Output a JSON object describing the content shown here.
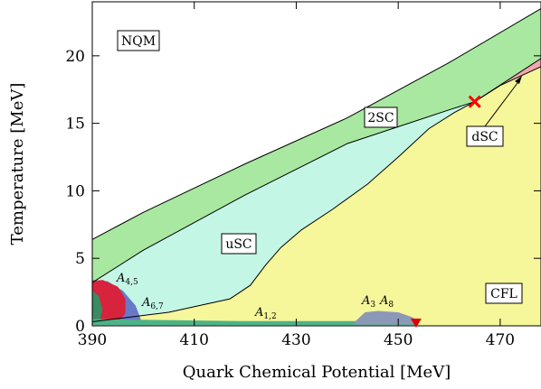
{
  "chart_data": {
    "type": "area",
    "title": "",
    "xlabel": "Quark Chemical Potential [MeV]",
    "ylabel": "Temperature [MeV]",
    "xlim": [
      390,
      478
    ],
    "ylim": [
      0,
      24
    ],
    "xticks": [
      390,
      410,
      430,
      450,
      470
    ],
    "yticks": [
      0,
      5,
      10,
      15,
      20
    ],
    "grid": false,
    "colors": {
      "nqm": "#ffffff",
      "twoSC": "#a8e8a0",
      "uSC": "#c4f6e6",
      "CFL": "#f6f69a",
      "dSC": "#f4a6b0",
      "A45": "#d8233c",
      "A67": "#6a78c8",
      "A12": "#4cb488",
      "A38": "#8c98b8",
      "darkgreen": "#3a8a62",
      "marker_cross": "#ff0000",
      "marker_triangle": "#dd0000"
    },
    "phases": [
      {
        "key": "nqm",
        "label": "NQM"
      },
      {
        "key": "twoSC",
        "label": "2SC"
      },
      {
        "key": "uSC",
        "label": "uSC"
      },
      {
        "key": "dSC",
        "label": "dSC"
      },
      {
        "key": "CFL",
        "label": "CFL"
      }
    ],
    "gapless_labels": {
      "A45": {
        "base": "A",
        "sub": "4,5"
      },
      "A67": {
        "base": "A",
        "sub": "6,7"
      },
      "A12": {
        "base": "A",
        "sub": "1,2"
      },
      "A3": {
        "base": "A",
        "sub": "3"
      },
      "A8": {
        "base": "A",
        "sub": "8"
      }
    },
    "boundaries": {
      "upper_2sc": [
        [
          390,
          6.4
        ],
        [
          400,
          8.4
        ],
        [
          420,
          12.0
        ],
        [
          440,
          15.4
        ],
        [
          460,
          19.5
        ],
        [
          478,
          23.5
        ]
      ],
      "lower_2sc": [
        [
          390,
          3.2
        ],
        [
          400,
          5.6
        ],
        [
          420,
          9.7
        ],
        [
          440,
          13.5
        ],
        [
          460,
          16.0
        ],
        [
          465,
          16.6
        ],
        [
          478,
          19.8
        ]
      ],
      "usc_cfl": [
        [
          390,
          0.3
        ],
        [
          405,
          1.0
        ],
        [
          417,
          2.0
        ],
        [
          421,
          3.0
        ],
        [
          424,
          4.5
        ],
        [
          427,
          5.8
        ],
        [
          431,
          7.1
        ],
        [
          437,
          8.6
        ],
        [
          444,
          10.5
        ],
        [
          450,
          12.5
        ],
        [
          456,
          14.6
        ],
        [
          461,
          15.8
        ],
        [
          465,
          16.6
        ]
      ],
      "dsc_cfl": [
        [
          465,
          16.6
        ],
        [
          470,
          17.8
        ],
        [
          478,
          19.2
        ]
      ],
      "cfl_bottom": [
        [
          390,
          0.1
        ],
        [
          453.5,
          0.1
        ]
      ]
    },
    "markers": [
      {
        "type": "cross",
        "x": 465,
        "y": 16.6
      },
      {
        "type": "triangle",
        "x": 453.5,
        "y": 0.0
      }
    ]
  }
}
